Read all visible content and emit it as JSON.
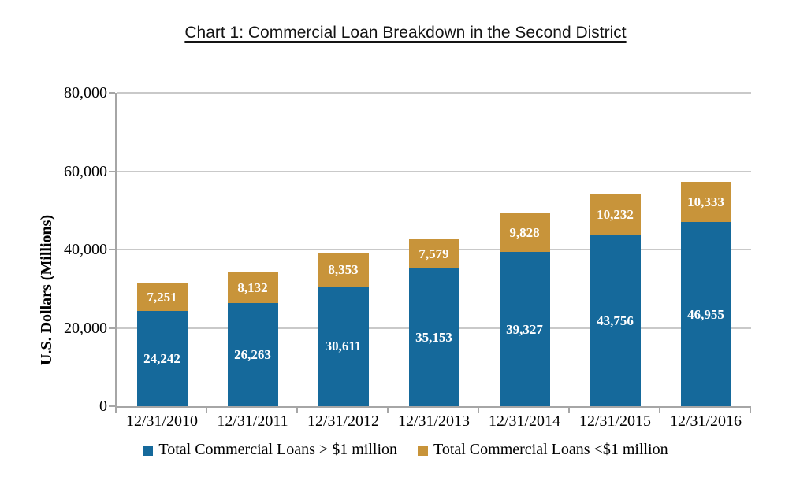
{
  "page": {
    "title": "Chart 1: Commercial Loan Breakdown in the Second District"
  },
  "chart_data": {
    "type": "bar",
    "stacked": true,
    "title": "Chart 1: Commercial Loan Breakdown in the Second District",
    "ylabel": "U.S. Dollars (Millions)",
    "xlabel": "",
    "ylim": [
      0,
      80000
    ],
    "grid": "horizontal",
    "legend_position": "bottom",
    "categories": [
      "12/31/2010",
      "12/31/2011",
      "12/31/2012",
      "12/31/2013",
      "12/31/2014",
      "12/31/2015",
      "12/31/2016"
    ],
    "yticks": [
      {
        "value": 0,
        "label": "0"
      },
      {
        "value": 20000,
        "label": "20,000"
      },
      {
        "value": 40000,
        "label": "40,000"
      },
      {
        "value": 60000,
        "label": "60,000"
      },
      {
        "value": 80000,
        "label": "80,000"
      }
    ],
    "series": [
      {
        "name": "Total Commercial Loans > $1 million",
        "color": "#15699B",
        "values": [
          24242,
          26263,
          30611,
          35153,
          39327,
          43756,
          46955
        ],
        "labels": [
          "24,242",
          "26,263",
          "30,611",
          "35,153",
          "39,327",
          "43,756",
          "46,955"
        ]
      },
      {
        "name": "Total Commercial Loans <$1 million",
        "color": "#C8943A",
        "values": [
          7251,
          8132,
          8353,
          7579,
          9828,
          10232,
          10333
        ],
        "labels": [
          "7,251",
          "8,132",
          "8,353",
          "7,579",
          "9,828",
          "10,232",
          "10,333"
        ]
      }
    ]
  },
  "colors": {
    "series_over_1m": "#15699B",
    "series_under_1m": "#C8943A",
    "gridline": "#C9C9C9",
    "axis": "#A6A6A6",
    "bar_label_text": "#FFFFFF"
  }
}
